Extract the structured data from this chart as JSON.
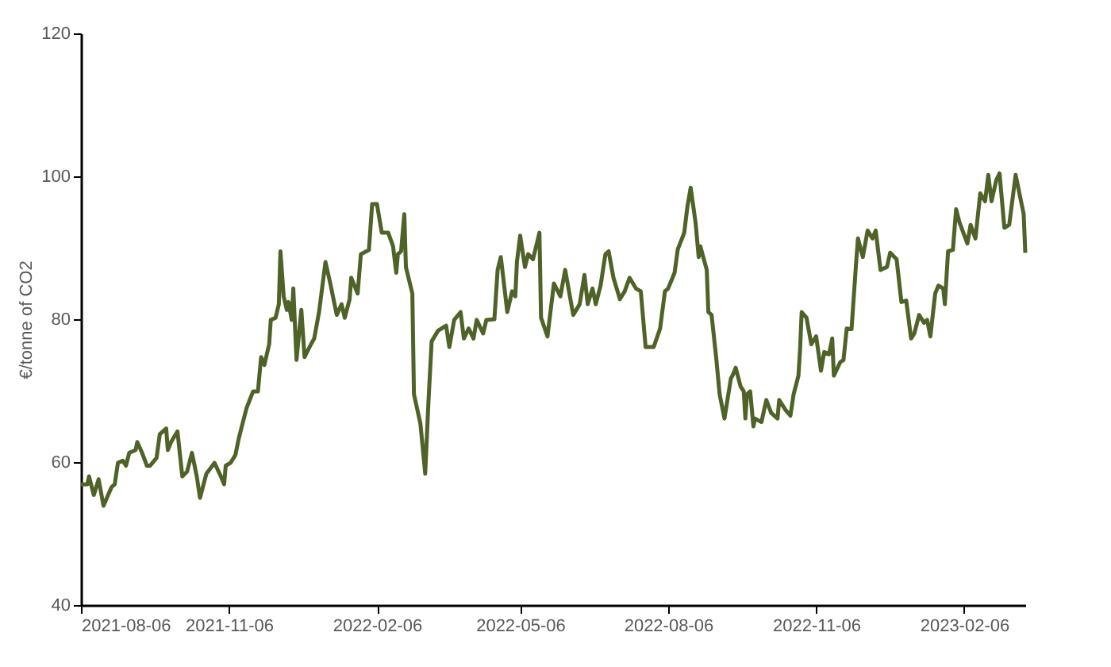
{
  "chart_data": {
    "type": "line",
    "ylabel": "€/tonne of CO2",
    "x": [
      "2021-08-06",
      "2021-08-10",
      "2021-08-11",
      "2021-08-14",
      "2021-08-17",
      "2021-08-20",
      "2021-08-25",
      "2021-08-27",
      "2021-08-29",
      "2021-09-01",
      "2021-09-03",
      "2021-09-05",
      "2021-09-09",
      "2021-09-10",
      "2021-09-13",
      "2021-09-16",
      "2021-09-18",
      "2021-09-22",
      "2021-09-24",
      "2021-09-28",
      "2021-09-29",
      "2021-10-01",
      "2021-10-05",
      "2021-10-08",
      "2021-10-11",
      "2021-10-14",
      "2021-10-17",
      "2021-10-19",
      "2021-10-23",
      "2021-10-28",
      "2021-11-01",
      "2021-11-03",
      "2021-11-04",
      "2021-11-07",
      "2021-11-10",
      "2021-11-12",
      "2021-11-14",
      "2021-11-17",
      "2021-11-21",
      "2021-11-24",
      "2021-11-26",
      "2021-11-28",
      "2021-12-01",
      "2021-12-02",
      "2021-12-05",
      "2021-12-07",
      "2021-12-08",
      "2021-12-10",
      "2021-12-12",
      "2021-12-13",
      "2021-12-15",
      "2021-12-16",
      "2021-12-18",
      "2021-12-21",
      "2021-12-23",
      "2021-12-27",
      "2021-12-29",
      "2022-01-01",
      "2022-01-05",
      "2022-01-08",
      "2022-01-12",
      "2022-01-15",
      "2022-01-17",
      "2022-01-20",
      "2022-01-21",
      "2022-01-25",
      "2022-01-27",
      "2022-02-01",
      "2022-02-03",
      "2022-02-06",
      "2022-02-09",
      "2022-02-13",
      "2022-02-16",
      "2022-02-18",
      "2022-02-19",
      "2022-02-21",
      "2022-02-23",
      "2022-02-24",
      "2022-02-28",
      "2022-03-01",
      "2022-03-05",
      "2022-03-08",
      "2022-03-10",
      "2022-03-12",
      "2022-03-16",
      "2022-03-21",
      "2022-03-23",
      "2022-03-26",
      "2022-03-30",
      "2022-04-01",
      "2022-04-04",
      "2022-04-07",
      "2022-04-09",
      "2022-04-13",
      "2022-04-15",
      "2022-04-20",
      "2022-04-22",
      "2022-04-24",
      "2022-04-28",
      "2022-05-01",
      "2022-05-03",
      "2022-05-04",
      "2022-05-06",
      "2022-05-09",
      "2022-05-11",
      "2022-05-14",
      "2022-05-18",
      "2022-05-19",
      "2022-05-23",
      "2022-05-27",
      "2022-05-31",
      "2022-06-03",
      "2022-06-08",
      "2022-06-12",
      "2022-06-15",
      "2022-06-17",
      "2022-06-20",
      "2022-06-22",
      "2022-06-25",
      "2022-06-28",
      "2022-06-30",
      "2022-07-03",
      "2022-07-07",
      "2022-07-10",
      "2022-07-13",
      "2022-07-17",
      "2022-07-20",
      "2022-07-23",
      "2022-07-28",
      "2022-08-01",
      "2022-08-04",
      "2022-08-06",
      "2022-08-10",
      "2022-08-12",
      "2022-08-16",
      "2022-08-18",
      "2022-08-20",
      "2022-08-23",
      "2022-08-25",
      "2022-08-26",
      "2022-08-30",
      "2022-08-31",
      "2022-09-02",
      "2022-09-05",
      "2022-09-07",
      "2022-09-10",
      "2022-09-14",
      "2022-09-15",
      "2022-09-17",
      "2022-09-20",
      "2022-09-22",
      "2022-09-23",
      "2022-09-24",
      "2022-09-26",
      "2022-09-28",
      "2022-09-29",
      "2022-10-03",
      "2022-10-06",
      "2022-10-09",
      "2022-10-13",
      "2022-10-14",
      "2022-10-18",
      "2022-10-21",
      "2022-10-23",
      "2022-10-26",
      "2022-10-27",
      "2022-10-28",
      "2022-10-31",
      "2022-11-03",
      "2022-11-06",
      "2022-11-09",
      "2022-11-11",
      "2022-11-14",
      "2022-11-16",
      "2022-11-17",
      "2022-11-21",
      "2022-11-23",
      "2022-11-25",
      "2022-11-28",
      "2022-12-01",
      "2022-12-02",
      "2022-12-05",
      "2022-12-08",
      "2022-12-11",
      "2022-12-13",
      "2022-12-16",
      "2022-12-20",
      "2022-12-22",
      "2022-12-26",
      "2022-12-29",
      "2023-01-01",
      "2023-01-04",
      "2023-01-06",
      "2023-01-09",
      "2023-01-12",
      "2023-01-14",
      "2023-01-16",
      "2023-01-19",
      "2023-01-21",
      "2023-01-24",
      "2023-01-25",
      "2023-01-27",
      "2023-01-30",
      "2023-02-01",
      "2023-02-03",
      "2023-02-08",
      "2023-02-10",
      "2023-02-13",
      "2023-02-16",
      "2023-02-19",
      "2023-02-21",
      "2023-02-23",
      "2023-02-26",
      "2023-02-28",
      "2023-03-03",
      "2023-03-06",
      "2023-03-10",
      "2023-03-15",
      "2023-03-16"
    ],
    "series": [
      {
        "color": "#4f6228",
        "values": [
          56.9,
          56.9,
          58.0,
          55.4,
          57.6,
          53.9,
          56.5,
          56.9,
          59.9,
          60.2,
          59.5,
          61.3,
          61.7,
          62.8,
          61.3,
          59.5,
          59.5,
          60.6,
          63.9,
          64.7,
          61.7,
          62.8,
          64.3,
          58.0,
          58.7,
          61.3,
          58.0,
          55.0,
          58.4,
          59.9,
          58.0,
          56.9,
          59.5,
          59.9,
          61.0,
          63.2,
          65.0,
          67.6,
          69.9,
          69.9,
          74.7,
          73.6,
          76.5,
          79.9,
          80.2,
          82.1,
          89.5,
          83.2,
          81.3,
          82.4,
          79.9,
          84.3,
          74.3,
          81.3,
          74.7,
          76.5,
          77.3,
          81.0,
          88.0,
          85.0,
          80.6,
          82.1,
          80.2,
          82.8,
          85.8,
          83.6,
          89.1,
          89.7,
          96.1,
          96.1,
          92.1,
          92.1,
          90.2,
          86.5,
          89.1,
          89.5,
          94.7,
          87.3,
          83.6,
          69.5,
          65.4,
          58.4,
          68.4,
          76.9,
          78.4,
          79.1,
          76.1,
          79.9,
          81.0,
          77.3,
          78.7,
          77.3,
          79.9,
          78.0,
          79.9,
          80.0,
          86.9,
          88.7,
          81.0,
          83.9,
          83.2,
          88.0,
          91.7,
          87.3,
          89.1,
          88.4,
          92.1,
          80.2,
          77.6,
          85.0,
          83.2,
          86.9,
          80.6,
          82.1,
          86.2,
          82.1,
          84.3,
          82.1,
          84.7,
          89.1,
          89.5,
          85.8,
          82.8,
          83.9,
          85.8,
          84.3,
          83.9,
          76.1,
          76.1,
          78.7,
          83.9,
          84.3,
          86.5,
          89.8,
          92.1,
          95.8,
          98.4,
          93.6,
          88.7,
          90.2,
          86.9,
          81.0,
          80.6,
          74.3,
          69.5,
          66.1,
          71.7,
          72.1,
          73.2,
          70.6,
          69.9,
          66.1,
          69.5,
          69.9,
          65.0,
          66.1,
          65.6,
          68.7,
          66.9,
          66.1,
          68.7,
          67.3,
          66.5,
          69.5,
          72.1,
          75.8,
          81.0,
          80.2,
          76.5,
          77.6,
          72.8,
          75.4,
          75.1,
          77.3,
          72.1,
          74.0,
          74.3,
          78.7,
          78.6,
          88.4,
          91.3,
          88.7,
          92.4,
          91.3,
          92.4,
          86.9,
          87.3,
          89.3,
          88.4,
          82.4,
          82.6,
          77.3,
          78.0,
          80.6,
          79.5,
          79.9,
          77.6,
          83.6,
          84.7,
          84.3,
          82.1,
          89.5,
          89.7,
          95.4,
          93.6,
          90.6,
          93.2,
          91.3,
          97.6,
          96.5,
          100.2,
          96.5,
          99.5,
          100.4,
          92.8,
          93.2,
          100.2,
          94.7,
          89.3
        ]
      }
    ],
    "xlim": [
      "2021-08-06",
      "2023-03-16"
    ],
    "xticks": [
      "2021-08-06",
      "2021-11-06",
      "2022-02-06",
      "2022-05-06",
      "2022-08-06",
      "2022-11-06",
      "2023-02-06"
    ],
    "ylim": [
      40,
      120
    ],
    "yticks": [
      40,
      60,
      80,
      100,
      120
    ],
    "grid": false,
    "marker": "none",
    "line_style": "solid"
  }
}
